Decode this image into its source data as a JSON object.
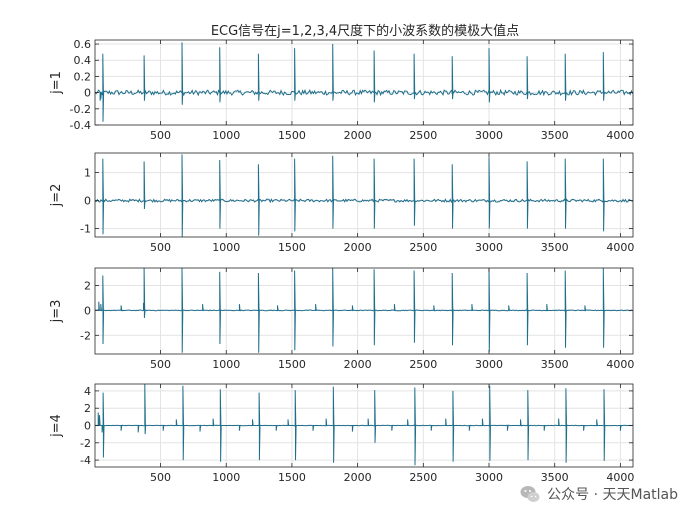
{
  "watermark": {
    "text": "公众号 · 天天Matlab"
  },
  "colors": {
    "signal": "#1f6f8b",
    "axis": "#262626",
    "grid": "#e3e3e3"
  },
  "chart_data": [
    {
      "type": "line",
      "title": "ECG信号在j=1,2,3,4尺度下的小波系数的模极大值点",
      "ylabel": "j=1",
      "xlim": [
        1,
        4096
      ],
      "ylim": [
        -0.4,
        0.65
      ],
      "xticks": [
        500,
        1000,
        1500,
        2000,
        2500,
        3000,
        3500,
        4000
      ],
      "yticks": [
        -0.4,
        -0.2,
        0,
        0.2,
        0.4,
        0.6
      ],
      "ytick_labels": [
        "-0.4",
        "-0.2",
        "0",
        "0.2",
        "0.4",
        "0.6"
      ],
      "grid": true,
      "spikes": [
        {
          "x": 40,
          "y": -0.1
        },
        {
          "x": 45,
          "y": -0.08
        },
        {
          "x": 60,
          "y": 0.48
        },
        {
          "x": 62,
          "y": -0.36
        },
        {
          "x": 375,
          "y": 0.46
        },
        {
          "x": 377,
          "y": -0.1
        },
        {
          "x": 663,
          "y": 0.62
        },
        {
          "x": 665,
          "y": -0.15
        },
        {
          "x": 950,
          "y": 0.56
        },
        {
          "x": 952,
          "y": -0.12
        },
        {
          "x": 1245,
          "y": 0.48
        },
        {
          "x": 1247,
          "y": -0.1
        },
        {
          "x": 1520,
          "y": 0.55
        },
        {
          "x": 1522,
          "y": -0.1
        },
        {
          "x": 1810,
          "y": 0.6
        },
        {
          "x": 1812,
          "y": -0.1
        },
        {
          "x": 2125,
          "y": 0.52
        },
        {
          "x": 2127,
          "y": -0.12
        },
        {
          "x": 2430,
          "y": 0.48
        },
        {
          "x": 2432,
          "y": -0.08
        },
        {
          "x": 2720,
          "y": 0.45
        },
        {
          "x": 2722,
          "y": -0.08
        },
        {
          "x": 3000,
          "y": 0.55
        },
        {
          "x": 3002,
          "y": -0.12
        },
        {
          "x": 3290,
          "y": 0.45
        },
        {
          "x": 3292,
          "y": -0.08
        },
        {
          "x": 3580,
          "y": 0.48
        },
        {
          "x": 3582,
          "y": -0.1
        },
        {
          "x": 3870,
          "y": 0.5
        },
        {
          "x": 3872,
          "y": -0.1
        }
      ],
      "noise_level": 0.03
    },
    {
      "type": "line",
      "ylabel": "j=2",
      "xlim": [
        1,
        4096
      ],
      "ylim": [
        -1.3,
        1.7
      ],
      "xticks": [
        500,
        1000,
        1500,
        2000,
        2500,
        3000,
        3500,
        4000
      ],
      "yticks": [
        -1,
        0,
        1
      ],
      "ytick_labels": [
        "-1",
        "0",
        "1"
      ],
      "grid": true,
      "spikes": [
        {
          "x": 60,
          "y": 1.5
        },
        {
          "x": 62,
          "y": -1.2
        },
        {
          "x": 375,
          "y": 1.4
        },
        {
          "x": 377,
          "y": -0.3
        },
        {
          "x": 663,
          "y": 1.65
        },
        {
          "x": 665,
          "y": -1.3
        },
        {
          "x": 950,
          "y": 1.45
        },
        {
          "x": 952,
          "y": -1.0
        },
        {
          "x": 1245,
          "y": 1.3
        },
        {
          "x": 1247,
          "y": -1.25
        },
        {
          "x": 1520,
          "y": 1.5
        },
        {
          "x": 1522,
          "y": -1.1
        },
        {
          "x": 1810,
          "y": 1.6
        },
        {
          "x": 1812,
          "y": -1.0
        },
        {
          "x": 2125,
          "y": 1.5
        },
        {
          "x": 2127,
          "y": -1.0
        },
        {
          "x": 2430,
          "y": 1.5
        },
        {
          "x": 2432,
          "y": -0.9
        },
        {
          "x": 2720,
          "y": 1.3
        },
        {
          "x": 2722,
          "y": -1.0
        },
        {
          "x": 3000,
          "y": 1.55
        },
        {
          "x": 3002,
          "y": -1.0
        },
        {
          "x": 3290,
          "y": 1.4
        },
        {
          "x": 3292,
          "y": -1.0
        },
        {
          "x": 3580,
          "y": 1.5
        },
        {
          "x": 3582,
          "y": -1.0
        },
        {
          "x": 3870,
          "y": 1.5
        },
        {
          "x": 3872,
          "y": -1.1
        }
      ],
      "noise_level": 0.05
    },
    {
      "type": "line",
      "ylabel": "j=3",
      "xlim": [
        1,
        4096
      ],
      "ylim": [
        -3.5,
        3.4
      ],
      "xticks": [
        500,
        1000,
        1500,
        2000,
        2500,
        3000,
        3500,
        4000
      ],
      "yticks": [
        -2,
        0,
        2
      ],
      "ytick_labels": [
        "-2",
        "0",
        "2"
      ],
      "grid": true,
      "spikes": [
        {
          "x": 30,
          "y": 0.7
        },
        {
          "x": 45,
          "y": 0.5
        },
        {
          "x": 60,
          "y": 2.8
        },
        {
          "x": 62,
          "y": -2.7
        },
        {
          "x": 370,
          "y": 0.6
        },
        {
          "x": 375,
          "y": 3.4
        },
        {
          "x": 377,
          "y": -0.6
        },
        {
          "x": 663,
          "y": 3.4
        },
        {
          "x": 665,
          "y": -3.4
        },
        {
          "x": 950,
          "y": 3.1
        },
        {
          "x": 952,
          "y": -2.7
        },
        {
          "x": 1245,
          "y": 3.0
        },
        {
          "x": 1247,
          "y": -3.4
        },
        {
          "x": 1520,
          "y": 3.2
        },
        {
          "x": 1522,
          "y": -3.2
        },
        {
          "x": 1810,
          "y": 3.4
        },
        {
          "x": 1812,
          "y": -2.9
        },
        {
          "x": 2125,
          "y": 3.3
        },
        {
          "x": 2127,
          "y": -2.8
        },
        {
          "x": 2430,
          "y": 3.2
        },
        {
          "x": 2432,
          "y": -2.6
        },
        {
          "x": 2720,
          "y": 3.0
        },
        {
          "x": 2722,
          "y": -2.8
        },
        {
          "x": 3000,
          "y": 3.4
        },
        {
          "x": 3002,
          "y": -3.3
        },
        {
          "x": 3290,
          "y": 3.0
        },
        {
          "x": 3292,
          "y": -2.8
        },
        {
          "x": 3580,
          "y": 3.2
        },
        {
          "x": 3582,
          "y": -3.0
        },
        {
          "x": 3870,
          "y": 3.4
        },
        {
          "x": 3872,
          "y": -3.0
        },
        {
          "x": 200,
          "y": 0.4
        },
        {
          "x": 820,
          "y": 0.5
        },
        {
          "x": 1100,
          "y": 0.5
        },
        {
          "x": 1390,
          "y": 0.4
        },
        {
          "x": 1680,
          "y": 0.5
        },
        {
          "x": 1960,
          "y": 0.4
        },
        {
          "x": 2280,
          "y": 0.5
        },
        {
          "x": 2580,
          "y": 0.4
        },
        {
          "x": 2870,
          "y": 0.5
        },
        {
          "x": 3150,
          "y": 0.4
        },
        {
          "x": 3440,
          "y": 0.5
        },
        {
          "x": 3730,
          "y": 0.4
        }
      ],
      "noise_level": 0.03
    },
    {
      "type": "line",
      "ylabel": "j=4",
      "xlim": [
        1,
        4096
      ],
      "ylim": [
        -4.8,
        4.8
      ],
      "xticks": [
        500,
        1000,
        1500,
        2000,
        2500,
        3000,
        3500,
        4000
      ],
      "yticks": [
        -4,
        -2,
        0,
        2,
        4
      ],
      "ytick_labels": [
        "-4",
        "-2",
        "0",
        "2",
        "4"
      ],
      "grid": true,
      "spikes": [
        {
          "x": 25,
          "y": 1.5
        },
        {
          "x": 35,
          "y": 1.2
        },
        {
          "x": 55,
          "y": -0.8
        },
        {
          "x": 63,
          "y": 3.8
        },
        {
          "x": 65,
          "y": -3.7
        },
        {
          "x": 330,
          "y": -0.8
        },
        {
          "x": 380,
          "y": 4.8
        },
        {
          "x": 382,
          "y": -1.0
        },
        {
          "x": 620,
          "y": 0.7
        },
        {
          "x": 670,
          "y": 4.6
        },
        {
          "x": 672,
          "y": -4.0
        },
        {
          "x": 900,
          "y": 0.8
        },
        {
          "x": 955,
          "y": 4.2
        },
        {
          "x": 957,
          "y": -4.2
        },
        {
          "x": 1200,
          "y": 0.7
        },
        {
          "x": 1250,
          "y": 3.8
        },
        {
          "x": 1252,
          "y": -4.0
        },
        {
          "x": 1470,
          "y": 0.7
        },
        {
          "x": 1525,
          "y": 4.1
        },
        {
          "x": 1527,
          "y": -4.0
        },
        {
          "x": 1760,
          "y": 0.8
        },
        {
          "x": 1815,
          "y": 4.5
        },
        {
          "x": 1817,
          "y": -4.3
        },
        {
          "x": 2080,
          "y": 0.8
        },
        {
          "x": 2130,
          "y": 4.1
        },
        {
          "x": 2132,
          "y": -2.0
        },
        {
          "x": 2380,
          "y": 0.7
        },
        {
          "x": 2435,
          "y": 4.4
        },
        {
          "x": 2437,
          "y": -4.6
        },
        {
          "x": 2670,
          "y": 0.8
        },
        {
          "x": 2725,
          "y": 4.0
        },
        {
          "x": 2727,
          "y": -4.2
        },
        {
          "x": 2950,
          "y": 0.8
        },
        {
          "x": 3005,
          "y": 4.6
        },
        {
          "x": 3007,
          "y": -4.1
        },
        {
          "x": 3240,
          "y": 0.7
        },
        {
          "x": 3295,
          "y": 4.1
        },
        {
          "x": 3297,
          "y": -4.0
        },
        {
          "x": 3530,
          "y": 0.8
        },
        {
          "x": 3585,
          "y": 4.3
        },
        {
          "x": 3587,
          "y": -4.3
        },
        {
          "x": 3820,
          "y": 0.7
        },
        {
          "x": 3875,
          "y": 4.2
        },
        {
          "x": 3877,
          "y": -4.1
        },
        {
          "x": 200,
          "y": -0.6
        },
        {
          "x": 520,
          "y": -0.6
        },
        {
          "x": 800,
          "y": -0.7
        },
        {
          "x": 1100,
          "y": -0.6
        },
        {
          "x": 1380,
          "y": -0.6
        },
        {
          "x": 1660,
          "y": -0.6
        },
        {
          "x": 1960,
          "y": -0.7
        },
        {
          "x": 2260,
          "y": -0.6
        },
        {
          "x": 2560,
          "y": -0.6
        },
        {
          "x": 2850,
          "y": -0.6
        },
        {
          "x": 3140,
          "y": -0.6
        },
        {
          "x": 3420,
          "y": -0.6
        },
        {
          "x": 3720,
          "y": -0.6
        },
        {
          "x": 4000,
          "y": -0.6
        }
      ],
      "noise_level": 0.02
    }
  ]
}
